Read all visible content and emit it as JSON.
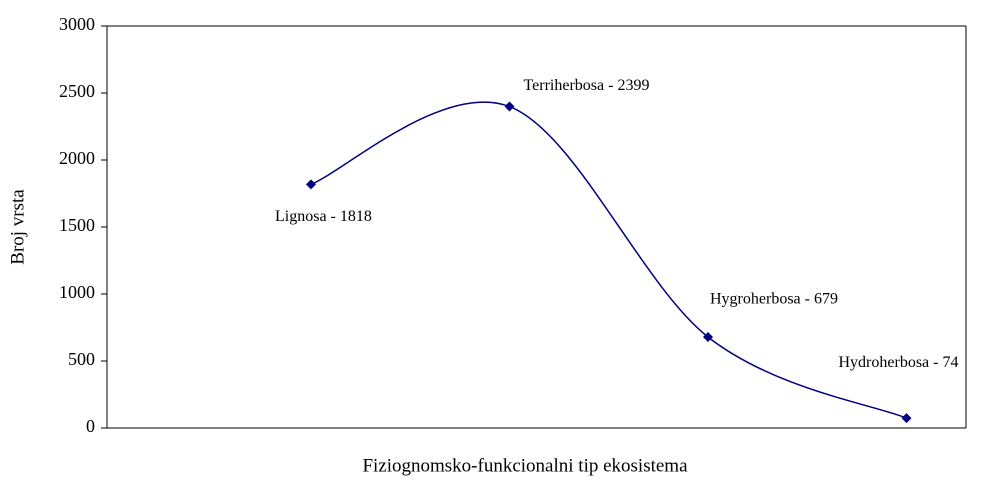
{
  "chart_data": {
    "type": "line",
    "categories": [
      null,
      null,
      null,
      null
    ],
    "values": [
      1818,
      2399,
      679,
      74
    ],
    "value_labels": [
      "Lignosa - 1818",
      "Terriherbosa - 2399",
      "Hygroherbosa - 679",
      "Hydroherbosa - 74"
    ],
    "color": "#000080",
    "xlabel": "Fiziognomsko-funkcionalni tip ekosistema",
    "ylabel": "Broj vrsta",
    "ylim": [
      0,
      3000
    ],
    "yticks": [
      0,
      500,
      1000,
      1500,
      2000,
      2500,
      3000
    ],
    "smooth": true
  }
}
